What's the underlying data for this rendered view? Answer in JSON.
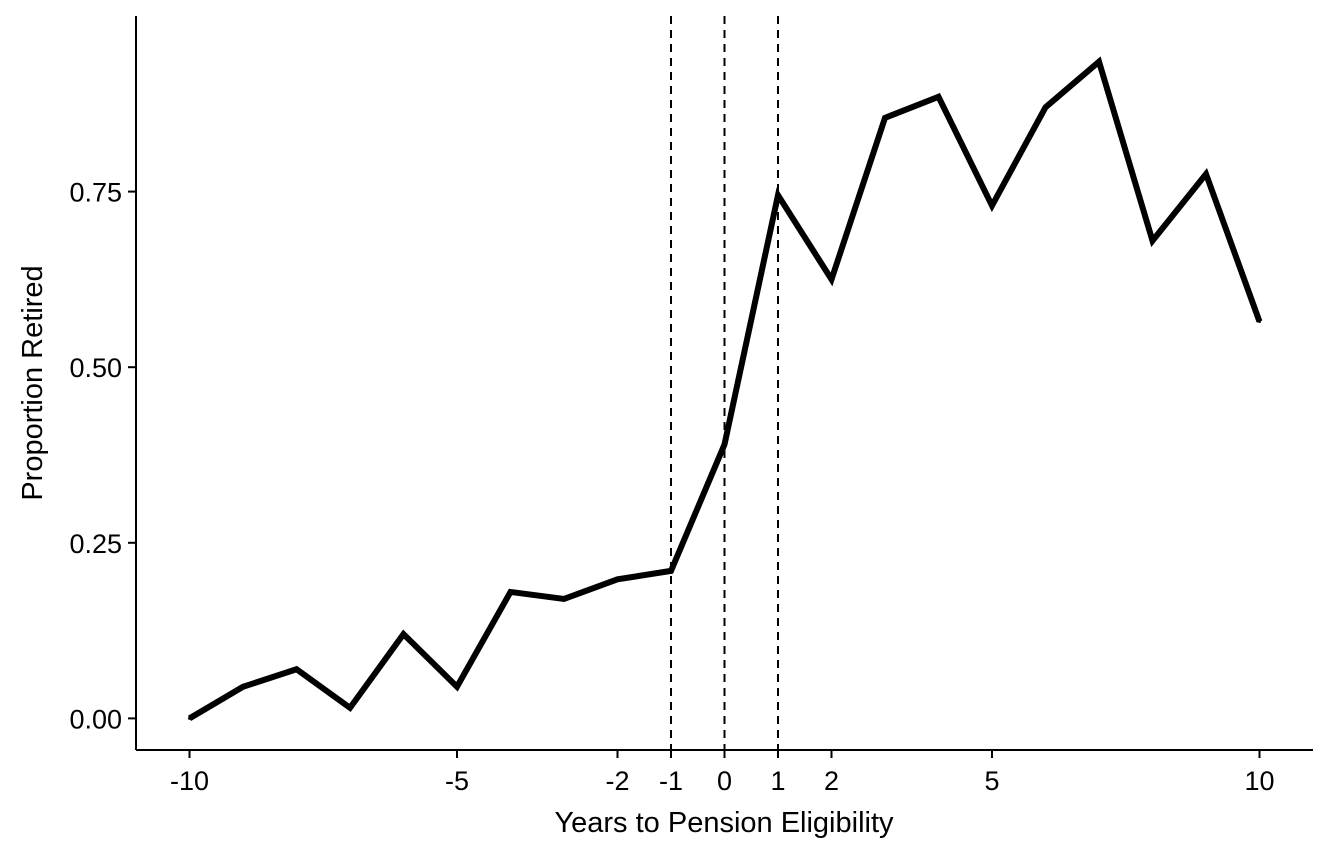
{
  "chart_data": {
    "type": "line",
    "xlabel": "Years to Pension Eligibility",
    "ylabel": "Proportion Retired",
    "x": [
      -10,
      -9,
      -8,
      -7,
      -6,
      -5,
      -4,
      -3,
      -2,
      -1,
      0,
      1,
      2,
      3,
      4,
      5,
      6,
      7,
      8,
      9,
      10
    ],
    "series": [
      {
        "values": [
          0.0,
          0.045,
          0.07,
          0.015,
          0.12,
          0.045,
          0.18,
          0.17,
          0.198,
          0.21,
          0.39,
          0.745,
          0.625,
          0.855,
          0.885,
          0.73,
          0.87,
          0.935,
          0.68,
          0.775,
          0.565
        ]
      }
    ],
    "xlim": [
      -11,
      11
    ],
    "ylim": [
      -0.045,
      1.0
    ],
    "x_ticks": [
      -10,
      -5,
      -2,
      -1,
      0,
      1,
      2,
      5,
      10
    ],
    "x_tick_labels": [
      "-10",
      "-5",
      "-2",
      "-1",
      "0",
      "1",
      "2",
      "5",
      "10"
    ],
    "y_ticks": [
      0,
      0.25,
      0.5,
      0.75
    ],
    "y_tick_labels": [
      "0.00",
      "0.25",
      "0.50",
      "0.75"
    ],
    "vlines": [
      -1,
      0,
      1
    ],
    "vline_style": "dashed",
    "grid": false,
    "line_color": "#000000",
    "axis_color": "#000000"
  }
}
